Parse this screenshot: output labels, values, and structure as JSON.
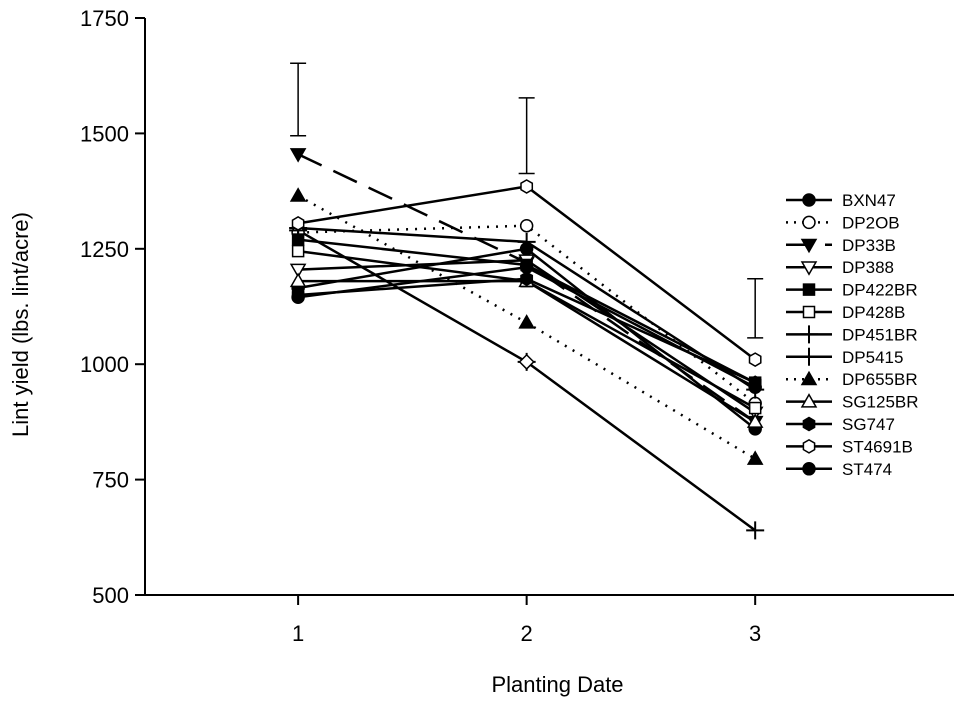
{
  "chart_data": {
    "type": "line",
    "title": "",
    "xlabel": "Planting Date",
    "ylabel": "Lint yield (lbs. lint/acre)",
    "x": [
      1,
      2,
      3
    ],
    "x_ticks": [
      "1",
      "2",
      "3"
    ],
    "xlim": [
      0.33,
      3.87
    ],
    "ylim": [
      500,
      1750
    ],
    "y_ticks": [
      "500",
      "750",
      "1000",
      "1250",
      "1500",
      "1750"
    ],
    "grid": false,
    "legend_position": "right",
    "error_bars": [
      {
        "x": 1,
        "low": 1495,
        "high": 1652
      },
      {
        "x": 2,
        "low": 1413,
        "high": 1577
      },
      {
        "x": 3,
        "low": 1057,
        "high": 1185
      }
    ],
    "series": [
      {
        "name": "BXN47",
        "values": [
          1165,
          1250,
          860
        ],
        "marker": "circle",
        "fill": "black",
        "dash": "solid"
      },
      {
        "name": "DP2OB",
        "values": [
          1285,
          1300,
          915
        ],
        "marker": "circle",
        "fill": "white",
        "dash": "dot"
      },
      {
        "name": "DP33B",
        "values": [
          1455,
          1220,
          875
        ],
        "marker": "triangle-down",
        "fill": "black",
        "dash": "longdash"
      },
      {
        "name": "DP388",
        "values": [
          1205,
          1225,
          895
        ],
        "marker": "triangle-down",
        "fill": "white",
        "dash": "solid"
      },
      {
        "name": "DP422BR",
        "values": [
          1270,
          1215,
          960
        ],
        "marker": "square",
        "fill": "black",
        "dash": "solid"
      },
      {
        "name": "DP428B",
        "values": [
          1245,
          1180,
          905
        ],
        "marker": "square",
        "fill": "white",
        "dash": "solid"
      },
      {
        "name": "DP451BR",
        "values": [
          1295,
          1265,
          945
        ],
        "marker": "cross",
        "fill": "black",
        "dash": "solid"
      },
      {
        "name": "DP5415",
        "values": [
          1290,
          1005,
          640
        ],
        "marker": "cross",
        "fill": "black",
        "dash": "solid"
      },
      {
        "name": "DP655BR",
        "values": [
          1365,
          1090,
          795
        ],
        "marker": "triangle-up",
        "fill": "black",
        "dash": "dot"
      },
      {
        "name": "SG125BR",
        "values": [
          1180,
          1180,
          875
        ],
        "marker": "triangle-up",
        "fill": "white",
        "dash": "solid"
      },
      {
        "name": "SG747",
        "values": [
          1150,
          1185,
          960
        ],
        "marker": "hexagon",
        "fill": "black",
        "dash": "solid"
      },
      {
        "name": "ST4691B",
        "values": [
          1305,
          1385,
          1010
        ],
        "marker": "hexagon",
        "fill": "white",
        "dash": "solid"
      },
      {
        "name": "ST474",
        "values": [
          1145,
          1210,
          950
        ],
        "marker": "circle",
        "fill": "black",
        "dash": "solid"
      }
    ],
    "extra_markers": [
      {
        "x": 2,
        "y": 1005,
        "marker": "diamond",
        "fill": "white"
      }
    ]
  }
}
